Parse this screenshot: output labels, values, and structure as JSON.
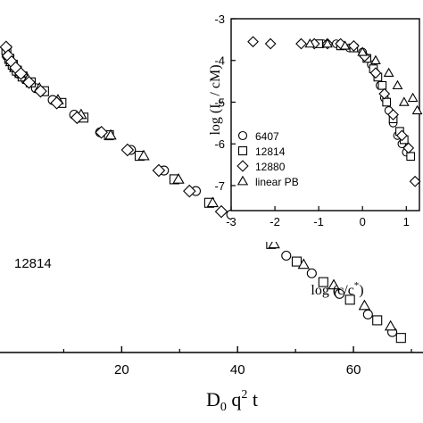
{
  "chart_data": [
    {
      "type": "scatter",
      "title": "",
      "xlabel": "D0 q2 t",
      "ylabel": "",
      "xlim": [
        -1,
        72
      ],
      "x_ticks": [
        20,
        40,
        60
      ],
      "annotation": "12814",
      "series": [
        {
          "marker": "circle",
          "x": [
            0.2,
            0.8,
            1.4,
            2.2,
            3.4,
            5.2,
            8.1,
            11.8,
            16.3,
            21.6,
            27.3,
            32.8,
            38.9,
            43.6,
            48.4,
            52.8,
            57.6,
            62.5,
            66.7
          ],
          "y": [
            0.2,
            0.0,
            -0.2,
            -0.4,
            -0.6,
            -0.9,
            -1.3,
            -1.8,
            -2.4,
            -3.0,
            -3.7,
            -4.4,
            -5.2,
            -5.9,
            -6.6,
            -7.2,
            -7.9,
            -8.6,
            -9.2
          ]
        },
        {
          "marker": "square",
          "x": [
            0.1,
            0.6,
            1.2,
            1.9,
            2.9,
            4.3,
            6.6,
            9.6,
            13.4,
            17.8,
            23.1,
            29.1,
            35.1,
            40.4,
            45.8,
            50.2,
            54.8,
            59.4,
            64.1,
            68.2
          ],
          "y": [
            0.4,
            0.1,
            -0.1,
            -0.3,
            -0.5,
            -0.7,
            -1.0,
            -1.4,
            -1.9,
            -2.5,
            -3.2,
            -4.0,
            -4.8,
            -5.5,
            -6.2,
            -6.8,
            -7.5,
            -8.1,
            -8.8,
            -9.4
          ]
        },
        {
          "marker": "triangle",
          "x": [
            0.3,
            0.9,
            1.6,
            2.5,
            3.8,
            5.8,
            9.0,
            13.0,
            18.1,
            23.8,
            29.8,
            35.7,
            41.1,
            46.3,
            51.4,
            56.6,
            61.9,
            66.4
          ],
          "y": [
            0.3,
            0.0,
            -0.2,
            -0.4,
            -0.6,
            -0.9,
            -1.3,
            -1.8,
            -2.5,
            -3.2,
            -4.0,
            -4.8,
            -5.5,
            -6.2,
            -6.9,
            -7.6,
            -8.3,
            -9.0
          ]
        },
        {
          "marker": "diamond",
          "x": [
            0.05,
            0.4,
            1.0,
            1.7,
            2.6,
            4.0,
            6.0,
            8.8,
            12.3,
            16.5,
            21.0,
            26.4,
            31.7,
            37.2
          ],
          "y": [
            0.5,
            0.2,
            0.0,
            -0.2,
            -0.4,
            -0.7,
            -1.0,
            -1.4,
            -1.9,
            -2.4,
            -3.0,
            -3.7,
            -4.4,
            -5.1
          ]
        }
      ]
    },
    {
      "type": "scatter",
      "title": "",
      "xlabel": "log (c/c*)",
      "ylabel": "log (Ic / cM)",
      "xlim": [
        -3,
        1.3
      ],
      "ylim": [
        -7.6,
        -3
      ],
      "x_ticks": [
        -3,
        -2,
        -1,
        0,
        1
      ],
      "x_tick_labels": [
        "-3",
        "-2",
        "-1",
        "0",
        "1"
      ],
      "y_ticks": [
        -3,
        -4,
        -5,
        -6,
        -7
      ],
      "y_tick_labels": [
        "-3",
        "-4",
        "-5",
        "-6",
        "-7"
      ],
      "legend_position": "lower-left",
      "series": [
        {
          "name": "6407",
          "marker": "circle",
          "x": [
            -0.9,
            -0.6,
            -0.3,
            0.0,
            0.2,
            0.3,
            0.4,
            0.5,
            0.6,
            0.7,
            0.8,
            0.9,
            1.0
          ],
          "y": [
            -3.6,
            -3.6,
            -3.7,
            -3.8,
            -4.1,
            -4.3,
            -4.6,
            -4.9,
            -5.2,
            -5.5,
            -5.8,
            -6.0,
            -6.2
          ]
        },
        {
          "name": "12814",
          "marker": "square",
          "x": [
            -1.0,
            -0.5,
            -0.2,
            0.1,
            0.25,
            0.35,
            0.45,
            0.55,
            0.7,
            0.85,
            0.95,
            1.1
          ],
          "y": [
            -3.6,
            -3.65,
            -3.7,
            -3.95,
            -4.2,
            -4.4,
            -4.6,
            -5.0,
            -5.4,
            -5.7,
            -5.9,
            -6.3
          ]
        },
        {
          "name": "12880",
          "marker": "diamond",
          "x": [
            -2.5,
            -2.1,
            -1.4,
            -1.1,
            -0.8,
            -0.5,
            -0.2,
            0.05,
            0.3,
            0.5,
            0.7,
            0.9,
            1.05,
            1.2
          ],
          "y": [
            -3.55,
            -3.6,
            -3.6,
            -3.6,
            -3.6,
            -3.6,
            -3.65,
            -3.9,
            -4.3,
            -4.8,
            -5.3,
            -5.8,
            -6.1,
            -6.9
          ]
        },
        {
          "name": "linear PB",
          "marker": "triangle",
          "x": [
            -1.2,
            -0.8,
            -0.4,
            0.0,
            0.3,
            0.6,
            0.8,
            0.95,
            1.15,
            1.25
          ],
          "y": [
            -3.6,
            -3.6,
            -3.65,
            -3.8,
            -4.0,
            -4.3,
            -4.6,
            -5.0,
            -4.9,
            -5.2
          ]
        }
      ]
    }
  ]
}
